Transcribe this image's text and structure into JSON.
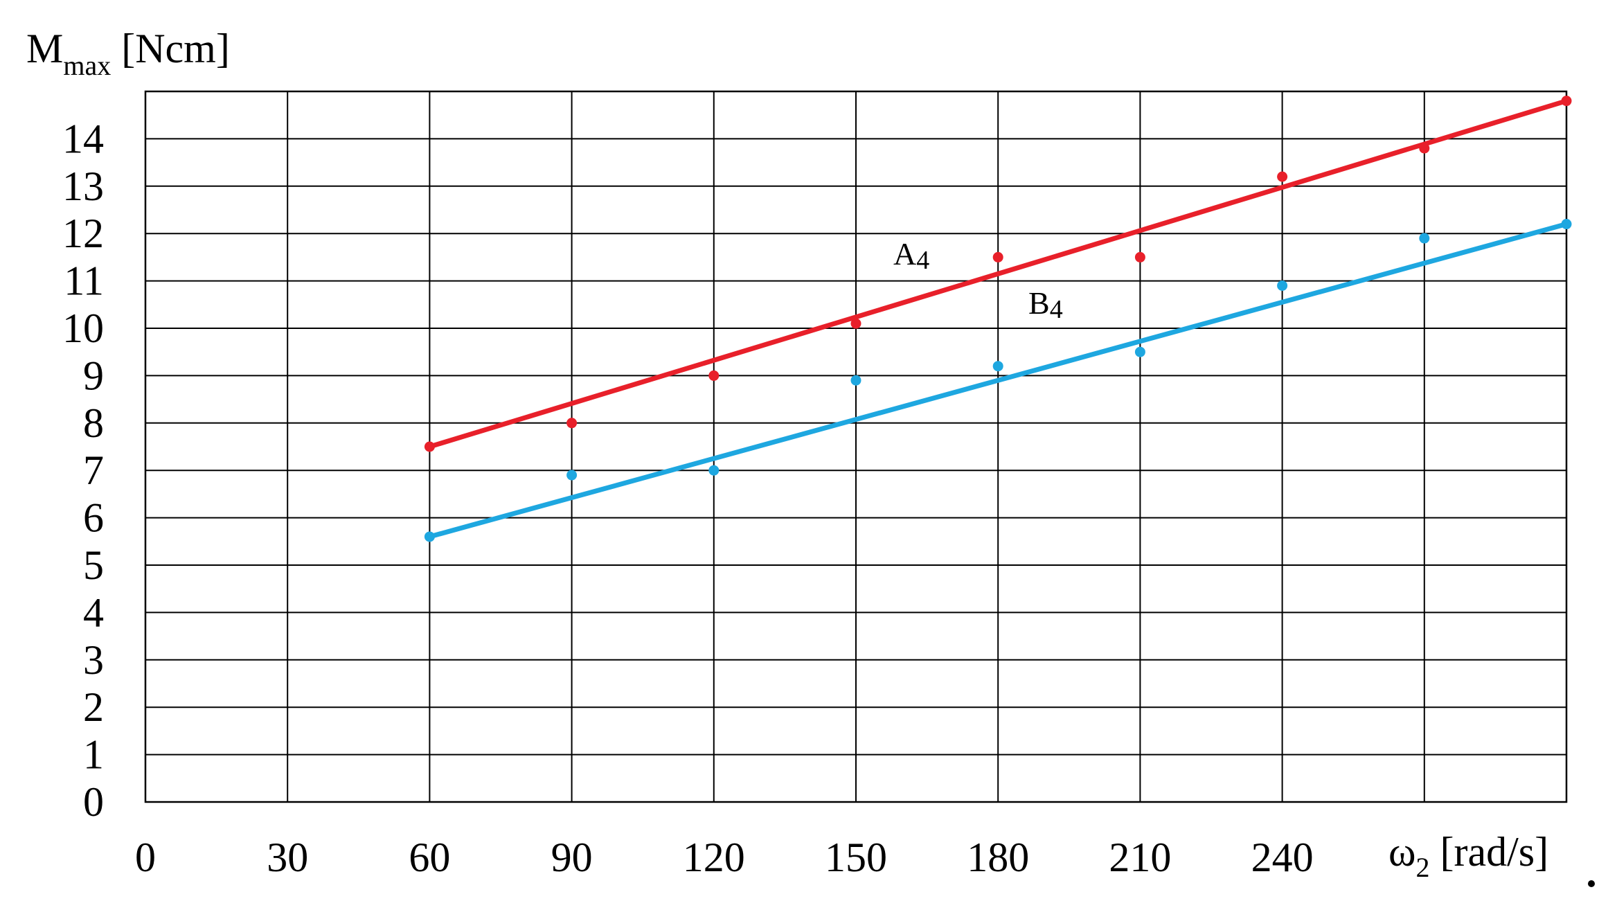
{
  "chart_data": {
    "type": "scatter",
    "ylabel": {
      "main": "M",
      "sub": "max",
      "unit": " [Ncm]"
    },
    "xlabel": {
      "main": "ω",
      "sub": "2",
      "unit": " [rad/s]"
    },
    "xlim": [
      0,
      300
    ],
    "ylim": [
      0,
      15
    ],
    "x_ticks": [
      0,
      30,
      60,
      90,
      120,
      150,
      180,
      210,
      240
    ],
    "y_ticks": [
      0,
      1,
      2,
      3,
      4,
      5,
      6,
      7,
      8,
      9,
      10,
      11,
      12,
      13,
      14
    ],
    "grid": true,
    "series": [
      {
        "name": {
          "main": "A",
          "sub": "4"
        },
        "color": "#e8202a",
        "points": [
          [
            60,
            7.5
          ],
          [
            90,
            8.0
          ],
          [
            120,
            9.0
          ],
          [
            150,
            10.1
          ],
          [
            180,
            11.5
          ],
          [
            210,
            11.5
          ],
          [
            240,
            13.2
          ],
          [
            270,
            13.8
          ],
          [
            300,
            14.8
          ]
        ],
        "trend": [
          [
            60,
            7.5
          ],
          [
            300,
            14.8
          ]
        ]
      },
      {
        "name": {
          "main": "B",
          "sub": "4"
        },
        "color": "#1ea7e0",
        "points": [
          [
            60,
            5.6
          ],
          [
            90,
            6.9
          ],
          [
            120,
            7.0
          ],
          [
            150,
            8.9
          ],
          [
            180,
            9.2
          ],
          [
            210,
            9.5
          ],
          [
            240,
            10.9
          ],
          [
            270,
            11.9
          ],
          [
            300,
            12.2
          ]
        ],
        "trend": [
          [
            60,
            5.6
          ],
          [
            300,
            12.2
          ]
        ]
      }
    ]
  }
}
